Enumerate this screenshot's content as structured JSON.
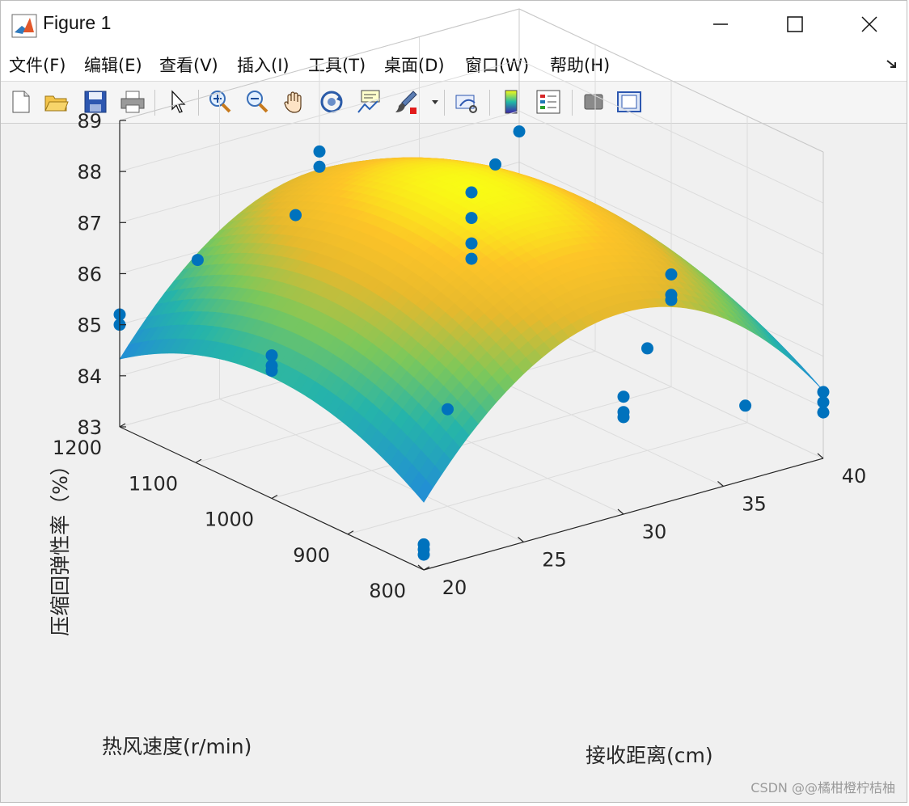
{
  "window": {
    "title": "Figure 1"
  },
  "menu": [
    "文件(F)",
    "编辑(E)",
    "查看(V)",
    "插入(I)",
    "工具(T)",
    "桌面(D)",
    "窗口(W)",
    "帮助(H)"
  ],
  "toolbar": {
    "tools": [
      "new-figure",
      "open-file",
      "save",
      "print",
      "edit-plot",
      "zoom-in",
      "zoom-out",
      "pan",
      "rotate-3d",
      "data-cursor",
      "brush",
      "link-plot",
      "insert-colorbar",
      "insert-legend",
      "hide-plot-tools",
      "show-plot-tools"
    ]
  },
  "watermark": "CSDN @@橘柑橙柠桔柚",
  "chart_data": {
    "type": "surface-scatter-3d",
    "title": "",
    "xlabel": "接收距离(cm)",
    "ylabel": "热风速度(r/min)",
    "zlabel": "压缩回弹性率（%）",
    "xlim": [
      20,
      40
    ],
    "ylim": [
      800,
      1200
    ],
    "zlim": [
      83,
      89
    ],
    "xticks": [
      "20",
      "25",
      "30",
      "35",
      "40"
    ],
    "yticks": [
      "800",
      "900",
      "1000",
      "1100",
      "1200"
    ],
    "zticks": [
      "83",
      "84",
      "85",
      "86",
      "87",
      "88",
      "89"
    ],
    "grid": true,
    "surface_fit": {
      "center": [
        30,
        1000
      ],
      "peak": 88.0,
      "a_x": 0.02625,
      "a_y": 2.625e-05
    },
    "scatter": [
      {
        "x": 20,
        "y": 1200,
        "z": 85.2
      },
      {
        "x": 20,
        "y": 1200,
        "z": 85.0
      },
      {
        "x": 40,
        "y": 800,
        "z": 84.3
      },
      {
        "x": 40,
        "y": 800,
        "z": 84.1
      },
      {
        "x": 40,
        "y": 800,
        "z": 83.9
      },
      {
        "x": 20,
        "y": 800,
        "z": 83.5
      },
      {
        "x": 20,
        "y": 800,
        "z": 83.4
      },
      {
        "x": 20,
        "y": 800,
        "z": 83.3
      },
      {
        "x": 40,
        "y": 1200,
        "z": 86.6
      },
      {
        "x": 30,
        "y": 1200,
        "z": 87.3
      },
      {
        "x": 30,
        "y": 1200,
        "z": 87.0
      },
      {
        "x": 20,
        "y": 1000,
        "z": 85.8
      },
      {
        "x": 20,
        "y": 1000,
        "z": 85.6
      },
      {
        "x": 20,
        "y": 1000,
        "z": 85.5
      },
      {
        "x": 40,
        "y": 1000,
        "z": 85.2
      },
      {
        "x": 40,
        "y": 1000,
        "z": 84.7
      },
      {
        "x": 40,
        "y": 1000,
        "z": 84.8
      },
      {
        "x": 30,
        "y": 800,
        "z": 85.3
      },
      {
        "x": 30,
        "y": 800,
        "z": 85.0
      },
      {
        "x": 30,
        "y": 800,
        "z": 84.9
      },
      {
        "x": 30,
        "y": 1000,
        "z": 87.9
      },
      {
        "x": 30,
        "y": 1000,
        "z": 87.4
      },
      {
        "x": 30,
        "y": 1000,
        "z": 86.9
      },
      {
        "x": 30,
        "y": 1000,
        "z": 86.6
      },
      {
        "x": 25,
        "y": 1100,
        "z": 87.3
      },
      {
        "x": 35,
        "y": 900,
        "z": 85.0
      },
      {
        "x": 25,
        "y": 900,
        "z": 84.9
      },
      {
        "x": 35,
        "y": 1100,
        "z": 87.2
      },
      {
        "x": 22,
        "y": 1150,
        "z": 86.4
      },
      {
        "x": 38,
        "y": 850,
        "z": 83.9
      }
    ]
  }
}
